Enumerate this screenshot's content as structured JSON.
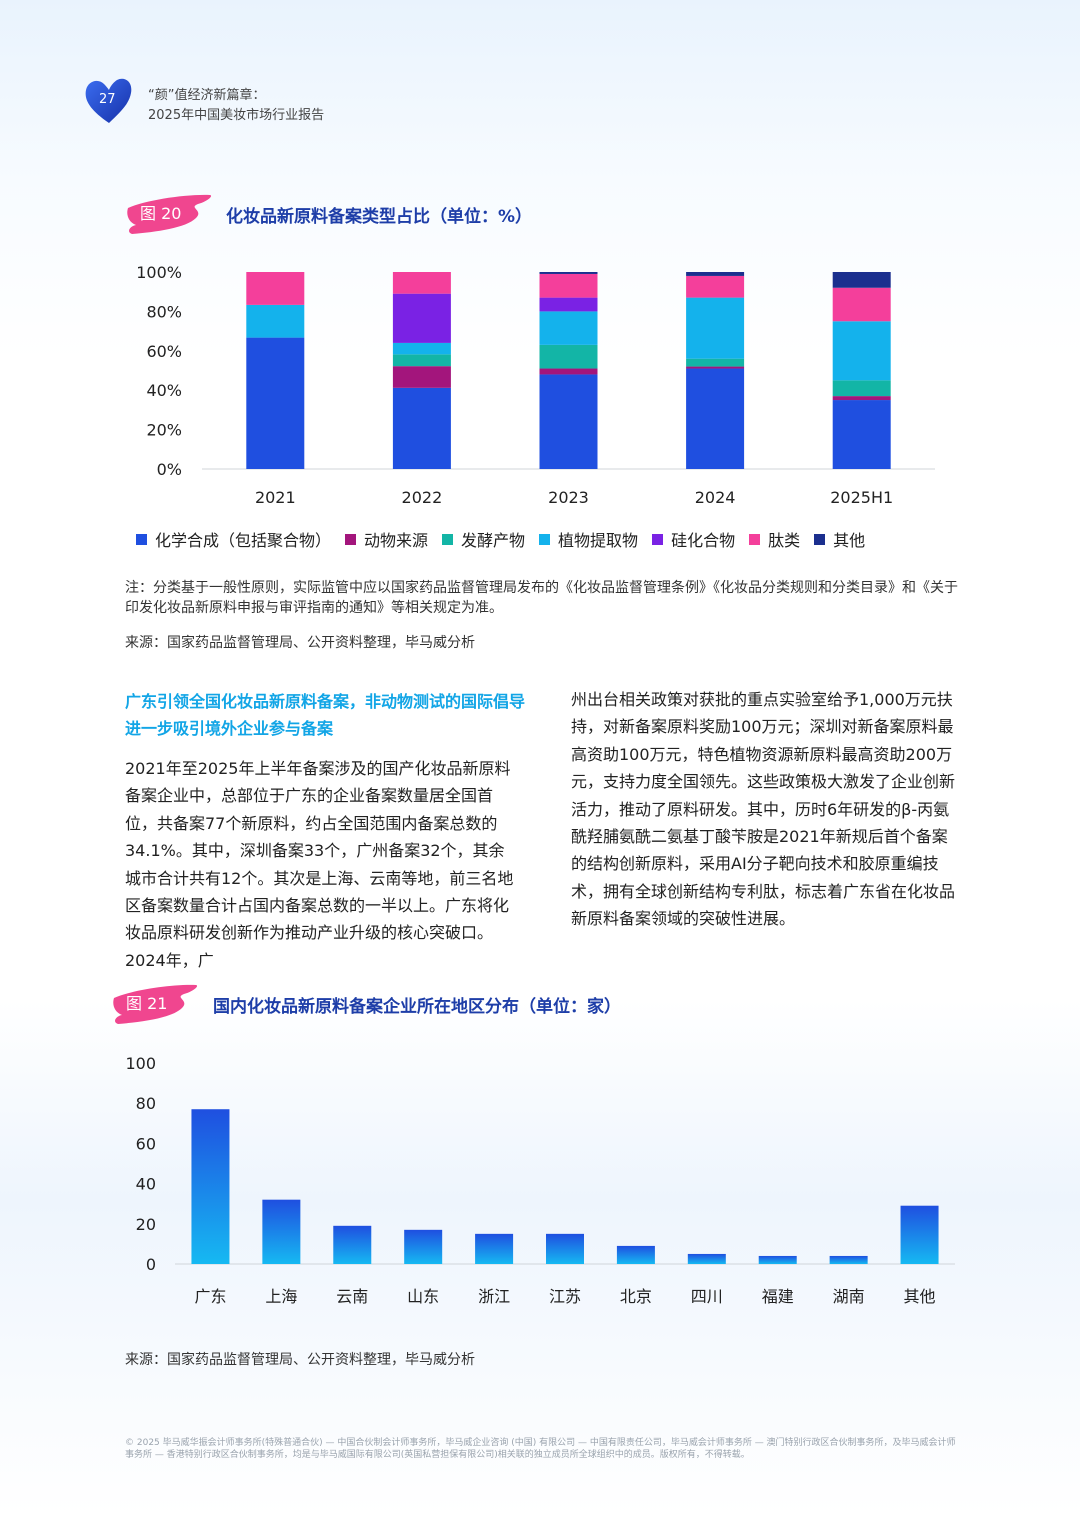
{
  "header": {
    "page_number": "27",
    "title_line1": "“颜”值经济新篇章：",
    "title_line2": "2025年中国美妆市场行业报告"
  },
  "fig20": {
    "tag": "图 20",
    "title": "化妆品新原料备案类型占比（单位：%）",
    "note": "注：分类基于一般性原则，实际监管中应以国家药品监督管理局发布的《化妆品监督管理条例》《化妆品分类规则和分类目录》和《关于印发化妆品新原料申报与审评指南的通知》等相关规定为准。",
    "source": "来源：国家药品监督管理局、公开资料整理，毕马威分析"
  },
  "fig21": {
    "tag": "图 21",
    "title": "国内化妆品新原料备案企业所在地区分布（单位：家）",
    "source": "来源：国家药品监督管理局、公开资料整理，毕马威分析"
  },
  "article": {
    "heading": "广东引领全国化妆品新原料备案，非动物测试的国际倡导进一步吸引境外企业参与备案",
    "para_left": "2021年至2025年上半年备案涉及的国产化妆品新原料备案企业中，总部位于广东的企业备案数量居全国首位，共备案77个新原料，约占全国范围内备案总数的34.1%。其中，深圳备案33个，广州备案32个，其余城市合计共有12个。其次是上海、云南等地，前三名地区备案数量合计占国内备案总数的一半以上。广东将化妆品原料研发创新作为推动产业升级的核心突破口。2024年，广",
    "para_right": "州出台相关政策对获批的重点实验室给予1,000万元扶持，对新备案原料奖励100万元；深圳对新备案原料最高资助100万元，特色植物资源新原料最高资助200万元，支持力度全国领先。这些政策极大激发了企业创新活力，推动了原料研发。其中，历时6年研发的β-丙氨酰羟脯氨酰二氨基丁酸苄胺是2021年新规后首个备案的结构创新原料，采用AI分子靶向技术和胶原重编技术，拥有全球创新结构专利肽，标志着广东省在化妆品新原料备案领域的突破性进展。"
  },
  "footer": {
    "text": "© 2025 毕马威华振会计师事务所(特殊普通合伙) — 中国合伙制会计师事务所，毕马威企业咨询 (中国) 有限公司 — 中国有限责任公司，毕马威会计师事务所 — 澳门特别行政区合伙制事务所，及毕马威会计师事务所 — 香港特别行政区合伙制事务所，均是与毕马威国际有限公司(英国私营担保有限公司)相关联的独立成员所全球组织中的成员。版权所有，不得转载。"
  },
  "chart_data": [
    {
      "type": "bar",
      "stacked": true,
      "title": "化妆品新原料备案类型占比（单位：%）",
      "categories": [
        "2021",
        "2022",
        "2023",
        "2024",
        "2025H1"
      ],
      "ylim": [
        0,
        100
      ],
      "yticks": [
        0,
        20,
        40,
        60,
        80,
        100
      ],
      "ytick_labels": [
        "0%",
        "20%",
        "40%",
        "60%",
        "80%",
        "100%"
      ],
      "legend_position": "bottom",
      "grid": false,
      "series": [
        {
          "name": "化学合成（包括聚合物）",
          "color": "#1f4fe0",
          "values": [
            66.7,
            41.2,
            48.0,
            51.0,
            35.0
          ]
        },
        {
          "name": "动物来源",
          "color": "#a3157c",
          "values": [
            0,
            11.0,
            3.0,
            1.0,
            2.0
          ]
        },
        {
          "name": "发酵产物",
          "color": "#13b5a6",
          "values": [
            0,
            6.0,
            12.0,
            4.0,
            8.0
          ]
        },
        {
          "name": "植物提取物",
          "color": "#14b2ec",
          "values": [
            16.6,
            5.8,
            17.0,
            31.0,
            30.0
          ]
        },
        {
          "name": "硅化合物",
          "color": "#7a22e4",
          "values": [
            0,
            25.0,
            7.0,
            0,
            0
          ]
        },
        {
          "name": "肽类",
          "color": "#f43f9b",
          "values": [
            16.7,
            11.0,
            12.0,
            11.0,
            17.0
          ]
        },
        {
          "name": "其他",
          "color": "#1b2f8e",
          "values": [
            0,
            0,
            1.0,
            2.0,
            8.0
          ]
        }
      ]
    },
    {
      "type": "bar",
      "title": "国内化妆品新原料备案企业所在地区分布（单位：家）",
      "categories": [
        "广东",
        "上海",
        "云南",
        "山东",
        "浙江",
        "江苏",
        "北京",
        "四川",
        "福建",
        "湖南",
        "其他"
      ],
      "values": [
        77,
        32,
        19,
        17,
        15,
        15,
        9,
        5,
        4,
        4,
        29
      ],
      "ylim": [
        0,
        100
      ],
      "yticks": [
        0,
        20,
        40,
        60,
        80,
        100
      ],
      "grid": false,
      "colors": {
        "top": "#1f4fe0",
        "bottom": "#16b9f2"
      }
    }
  ]
}
